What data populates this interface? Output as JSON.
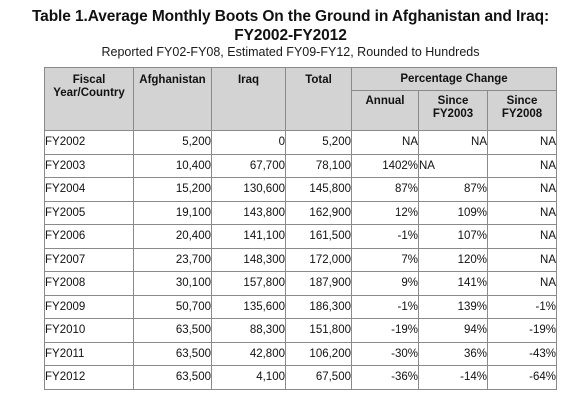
{
  "title_line1": "Table 1.Average Monthly Boots On the Ground in Afghanistan and Iraq:",
  "title_line2": "FY2002-FY2012",
  "subtitle": "Reported FY02-FY08, Estimated FY09-FY12, Rounded to Hundreds",
  "headers": {
    "fiscal_line1": "Fiscal",
    "fiscal_line2": "Year/Country",
    "afghanistan": "Afghanistan",
    "iraq": "Iraq",
    "total": "Total",
    "pct_change": "Percentage Change",
    "annual": "Annual",
    "since_fy2003_line1": "Since",
    "since_fy2003_line2": "FY2003",
    "since_fy2008_line1": "Since",
    "since_fy2008_line2": "FY2008"
  },
  "rows": [
    {
      "year": "FY2002",
      "afghanistan": "5,200",
      "iraq": "0",
      "total": "5,200",
      "annual": "NA",
      "since2003": "NA",
      "since2008": "NA"
    },
    {
      "year": "FY2003",
      "afghanistan": "10,400",
      "iraq": "67,700",
      "total": "78,100",
      "annual": "1402%",
      "since2003": "NA",
      "since2008": "NA"
    },
    {
      "year": "FY2004",
      "afghanistan": "15,200",
      "iraq": "130,600",
      "total": "145,800",
      "annual": "87%",
      "since2003": "87%",
      "since2008": "NA"
    },
    {
      "year": "FY2005",
      "afghanistan": "19,100",
      "iraq": "143,800",
      "total": "162,900",
      "annual": "12%",
      "since2003": "109%",
      "since2008": "NA"
    },
    {
      "year": "FY2006",
      "afghanistan": "20,400",
      "iraq": "141,100",
      "total": "161,500",
      "annual": "-1%",
      "since2003": "107%",
      "since2008": "NA"
    },
    {
      "year": "FY2007",
      "afghanistan": "23,700",
      "iraq": "148,300",
      "total": "172,000",
      "annual": "7%",
      "since2003": "120%",
      "since2008": "NA"
    },
    {
      "year": "FY2008",
      "afghanistan": "30,100",
      "iraq": "157,800",
      "total": "187,900",
      "annual": "9%",
      "since2003": "141%",
      "since2008": "NA"
    },
    {
      "year": "FY2009",
      "afghanistan": "50,700",
      "iraq": "135,600",
      "total": "186,300",
      "annual": "-1%",
      "since2003": "139%",
      "since2008": "-1%"
    },
    {
      "year": "FY2010",
      "afghanistan": "63,500",
      "iraq": "88,300",
      "total": "151,800",
      "annual": "-19%",
      "since2003": "94%",
      "since2008": "-19%"
    },
    {
      "year": "FY2011",
      "afghanistan": "63,500",
      "iraq": "42,800",
      "total": "106,200",
      "annual": "-30%",
      "since2003": "36%",
      "since2008": "-43%"
    },
    {
      "year": "FY2012",
      "afghanistan": "63,500",
      "iraq": "4,100",
      "total": "67,500",
      "annual": "-36%",
      "since2003": "-14%",
      "since2008": "-64%"
    }
  ],
  "colors": {
    "header_bg": "#d3d3d3",
    "border": "#8a8a8a",
    "text": "#111111"
  }
}
